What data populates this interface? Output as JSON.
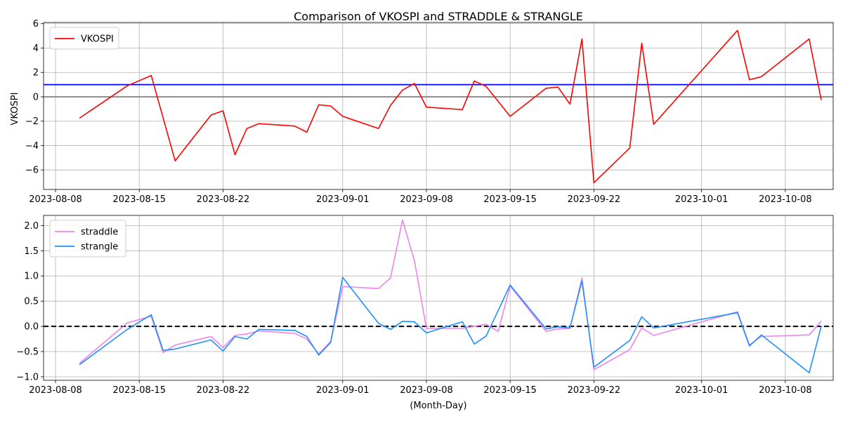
{
  "chart_data": [
    {
      "type": "line",
      "title": "Comparison of VKOSPI and STRADDLE & STRANGLE",
      "xlabel": "",
      "ylabel": "VKOSPI",
      "x_tick_labels": [
        "2023-08-08",
        "2023-08-15",
        "2023-08-22",
        "2023-09-01",
        "2023-09-08",
        "2023-09-15",
        "2023-09-22",
        "2023-10-01",
        "2023-10-08"
      ],
      "y_tick_labels": [
        "−6",
        "−4",
        "−2",
        "0",
        "2",
        "4",
        "6"
      ],
      "ylim": [
        -7.6,
        6.1
      ],
      "xlim": [
        "2023-08-07",
        "2023-10-12"
      ],
      "grid": true,
      "legend": "top-left",
      "reference_lines": [
        {
          "y": 1.0,
          "color": "#0000ff",
          "style": "solid"
        },
        {
          "y": 0.0,
          "color": "#808080",
          "style": "solid"
        }
      ],
      "series": [
        {
          "name": "VKOSPI",
          "color": "#ff0000",
          "x": [
            "2023-08-10",
            "2023-08-14",
            "2023-08-16",
            "2023-08-18",
            "2023-08-21",
            "2023-08-22",
            "2023-08-23",
            "2023-08-24",
            "2023-08-25",
            "2023-08-28",
            "2023-08-29",
            "2023-08-30",
            "2023-08-31",
            "2023-09-01",
            "2023-09-04",
            "2023-09-05",
            "2023-09-06",
            "2023-09-07",
            "2023-09-08",
            "2023-09-11",
            "2023-09-12",
            "2023-09-13",
            "2023-09-15",
            "2023-09-18",
            "2023-09-19",
            "2023-09-20",
            "2023-09-21",
            "2023-09-22",
            "2023-09-25",
            "2023-09-26",
            "2023-09-27",
            "2023-10-04",
            "2023-10-05",
            "2023-10-06",
            "2023-10-10",
            "2023-10-11"
          ],
          "values": [
            -1.75,
            0.9,
            1.75,
            -5.25,
            -1.5,
            -1.15,
            -4.75,
            -2.6,
            -2.2,
            -2.4,
            -2.9,
            -0.65,
            -0.75,
            -1.6,
            -2.6,
            -0.7,
            0.55,
            1.1,
            -0.85,
            -1.05,
            1.3,
            0.85,
            -1.6,
            0.7,
            0.8,
            -0.6,
            4.75,
            -7.05,
            -4.2,
            4.4,
            -2.25,
            5.45,
            1.4,
            1.65,
            4.75,
            -0.25
          ]
        }
      ]
    },
    {
      "type": "line",
      "title": "",
      "xlabel": "(Month-Day)",
      "ylabel": "",
      "x_tick_labels": [
        "2023-08-08",
        "2023-08-15",
        "2023-08-22",
        "2023-09-01",
        "2023-09-08",
        "2023-09-15",
        "2023-09-22",
        "2023-10-01",
        "2023-10-08"
      ],
      "y_tick_labels": [
        "−1.0",
        "−0.5",
        "0.0",
        "0.5",
        "1.0",
        "1.5",
        "2.0"
      ],
      "ylim": [
        -1.07,
        2.2
      ],
      "xlim": [
        "2023-08-07",
        "2023-10-12"
      ],
      "grid": true,
      "legend": "top-left",
      "reference_lines": [
        {
          "y": 0.0,
          "color": "#000000",
          "style": "dashed"
        }
      ],
      "series": [
        {
          "name": "straddle",
          "color": "#ee82ee",
          "x": [
            "2023-08-10",
            "2023-08-14",
            "2023-08-16",
            "2023-08-17",
            "2023-08-18",
            "2023-08-21",
            "2023-08-22",
            "2023-08-23",
            "2023-08-24",
            "2023-08-25",
            "2023-08-28",
            "2023-08-29",
            "2023-08-30",
            "2023-08-31",
            "2023-09-01",
            "2023-09-04",
            "2023-09-05",
            "2023-09-06",
            "2023-09-07",
            "2023-09-08",
            "2023-09-11",
            "2023-09-12",
            "2023-09-13",
            "2023-09-14",
            "2023-09-15",
            "2023-09-18",
            "2023-09-19",
            "2023-09-20",
            "2023-09-21",
            "2023-09-22",
            "2023-09-25",
            "2023-09-26",
            "2023-09-27",
            "2023-10-04",
            "2023-10-05",
            "2023-10-06",
            "2023-10-10",
            "2023-10-11"
          ],
          "values": [
            -0.73,
            0.07,
            0.2,
            -0.52,
            -0.37,
            -0.2,
            -0.42,
            -0.18,
            -0.15,
            -0.09,
            -0.14,
            -0.25,
            -0.55,
            -0.3,
            0.79,
            0.75,
            0.96,
            2.11,
            1.3,
            -0.04,
            -0.04,
            0.0,
            0.04,
            -0.1,
            0.8,
            -0.1,
            -0.05,
            -0.04,
            0.96,
            -0.86,
            -0.46,
            -0.03,
            -0.18,
            0.29,
            -0.37,
            -0.2,
            -0.17,
            0.1
          ]
        },
        {
          "name": "strangle",
          "color": "#1e90ff",
          "x": [
            "2023-08-10",
            "2023-08-14",
            "2023-08-16",
            "2023-08-17",
            "2023-08-18",
            "2023-08-21",
            "2023-08-22",
            "2023-08-23",
            "2023-08-24",
            "2023-08-25",
            "2023-08-28",
            "2023-08-29",
            "2023-08-30",
            "2023-08-31",
            "2023-09-01",
            "2023-09-04",
            "2023-09-05",
            "2023-09-06",
            "2023-09-07",
            "2023-09-08",
            "2023-09-11",
            "2023-09-12",
            "2023-09-13",
            "2023-09-15",
            "2023-09-18",
            "2023-09-19",
            "2023-09-20",
            "2023-09-21",
            "2023-09-22",
            "2023-09-25",
            "2023-09-26",
            "2023-09-27",
            "2023-10-04",
            "2023-10-05",
            "2023-10-06",
            "2023-10-10",
            "2023-10-11"
          ],
          "values": [
            -0.76,
            -0.06,
            0.23,
            -0.48,
            -0.45,
            -0.27,
            -0.49,
            -0.2,
            -0.25,
            -0.06,
            -0.08,
            -0.2,
            -0.57,
            -0.32,
            0.97,
            0.06,
            -0.06,
            0.1,
            0.09,
            -0.13,
            0.09,
            -0.35,
            -0.19,
            0.82,
            -0.05,
            -0.01,
            -0.03,
            0.9,
            -0.81,
            -0.28,
            0.19,
            -0.03,
            0.27,
            -0.39,
            -0.17,
            -0.92,
            0.0
          ]
        }
      ]
    }
  ]
}
